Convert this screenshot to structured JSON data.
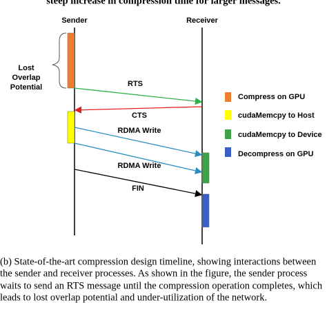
{
  "header": {
    "text": "steep increase in compression time for larger messages."
  },
  "diagram": {
    "sender": "Sender",
    "receiver": "Receiver",
    "annotation": [
      "Lost",
      "Overlap",
      "Potential"
    ],
    "messages": [
      "RTS",
      "CTS",
      "RDMA Write",
      "RDMA Write",
      "FIN"
    ],
    "legend": [
      "Compress on GPU",
      "cudaMemcpy to Host",
      "cudaMemcpy to Device",
      "Decompress on GPU"
    ]
  },
  "caption": {
    "lines": [
      "(b) State-of-the-art compression design timeline, showing interactions between",
      "the sender and receiver processes. As shown in the figure, the sender process",
      "waits to send an RTS message until the compression operation completes, which",
      "leads to lost overlap potential and under-utilization of the network."
    ]
  }
}
